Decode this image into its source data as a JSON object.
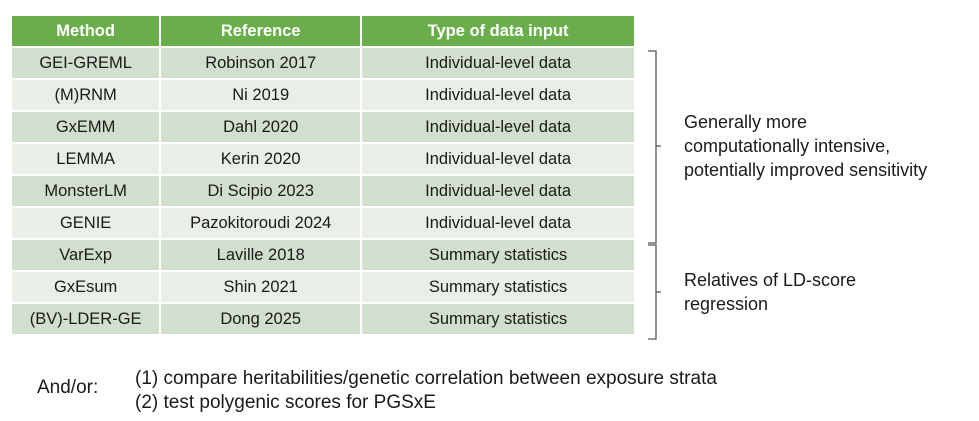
{
  "table": {
    "headers": [
      "Method",
      "Reference",
      "Type of data input"
    ],
    "rows": [
      [
        "GEI-GREML",
        "Robinson 2017",
        "Individual-level data"
      ],
      [
        "(M)RNM",
        "Ni 2019",
        "Individual-level data"
      ],
      [
        "GxEMM",
        "Dahl 2020",
        "Individual-level data"
      ],
      [
        "LEMMA",
        "Kerin 2020",
        "Individual-level data"
      ],
      [
        "MonsterLM",
        "Di Scipio 2023",
        "Individual-level data"
      ],
      [
        "GENIE",
        "Pazokitoroudi 2024",
        "Individual-level data"
      ],
      [
        "VarExp",
        "Laville 2018",
        "Summary statistics"
      ],
      [
        "GxEsum",
        "Shin 2021",
        "Summary statistics"
      ],
      [
        "(BV)-LDER-GE",
        "Dong 2025",
        "Summary statistics"
      ]
    ]
  },
  "groups": {
    "individual": {
      "lines": [
        "Generally more",
        "computationally intensive,",
        "potentially improved sensitivity"
      ]
    },
    "summary": {
      "lines": [
        "Relatives of LD-score",
        "regression"
      ]
    }
  },
  "footer": {
    "label": "And/or:",
    "items": [
      "(1) compare heritabilities/genetic correlation between exposure strata",
      "(2) test polygenic scores for PGSxE"
    ]
  }
}
